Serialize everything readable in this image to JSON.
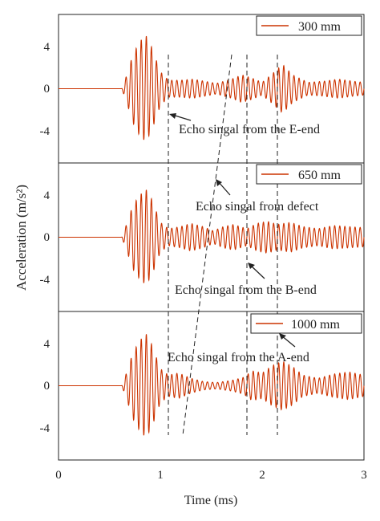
{
  "chart_data": {
    "type": "line",
    "xlabel": "Time (ms)",
    "ylabel": "Acceleration (m/s²)",
    "xlim": [
      0,
      3
    ],
    "xticks": [
      "0",
      "1",
      "2",
      "3"
    ],
    "ylim": [
      -7,
      7
    ],
    "yticks": [
      "-4",
      "0",
      "4"
    ],
    "line_color": "#cc3300",
    "legend_position": "top-right",
    "panels": [
      {
        "name": "300 mm",
        "envelope": [
          [
            0,
            0
          ],
          [
            0.62,
            0
          ],
          [
            0.66,
            1.0
          ],
          [
            0.73,
            3.2
          ],
          [
            0.8,
            4.5
          ],
          [
            0.86,
            5.0
          ],
          [
            0.92,
            3.8
          ],
          [
            1.0,
            1.6
          ],
          [
            1.08,
            0.8
          ],
          [
            1.2,
            0.8
          ],
          [
            1.32,
            0.9
          ],
          [
            1.44,
            0.7
          ],
          [
            1.55,
            0.5
          ],
          [
            1.7,
            0.9
          ],
          [
            1.8,
            1.3
          ],
          [
            1.9,
            1.0
          ],
          [
            2.0,
            0.6
          ],
          [
            2.1,
            1.4
          ],
          [
            2.2,
            2.3
          ],
          [
            2.3,
            1.3
          ],
          [
            2.45,
            0.6
          ],
          [
            2.6,
            0.7
          ],
          [
            2.75,
            0.9
          ],
          [
            2.9,
            0.7
          ],
          [
            3.0,
            0.6
          ]
        ]
      },
      {
        "name": "650 mm",
        "envelope": [
          [
            0,
            0
          ],
          [
            0.62,
            0
          ],
          [
            0.66,
            1.0
          ],
          [
            0.73,
            3.0
          ],
          [
            0.8,
            4.0
          ],
          [
            0.86,
            4.5
          ],
          [
            0.92,
            3.5
          ],
          [
            1.0,
            1.4
          ],
          [
            1.08,
            0.8
          ],
          [
            1.2,
            1.0
          ],
          [
            1.3,
            1.3
          ],
          [
            1.42,
            1.0
          ],
          [
            1.52,
            0.6
          ],
          [
            1.62,
            1.0
          ],
          [
            1.72,
            1.2
          ],
          [
            1.85,
            0.8
          ],
          [
            1.95,
            1.3
          ],
          [
            2.05,
            1.5
          ],
          [
            2.15,
            1.2
          ],
          [
            2.28,
            1.4
          ],
          [
            2.4,
            1.0
          ],
          [
            2.55,
            0.8
          ],
          [
            2.7,
            1.1
          ],
          [
            2.85,
            1.0
          ],
          [
            3.0,
            0.9
          ]
        ]
      },
      {
        "name": "1000 mm",
        "envelope": [
          [
            0,
            0
          ],
          [
            0.62,
            0
          ],
          [
            0.66,
            1.0
          ],
          [
            0.73,
            3.1
          ],
          [
            0.8,
            4.3
          ],
          [
            0.86,
            4.9
          ],
          [
            0.92,
            3.8
          ],
          [
            1.0,
            1.6
          ],
          [
            1.08,
            1.0
          ],
          [
            1.18,
            1.2
          ],
          [
            1.3,
            0.7
          ],
          [
            1.42,
            0.4
          ],
          [
            1.55,
            0.3
          ],
          [
            1.7,
            0.5
          ],
          [
            1.82,
            0.8
          ],
          [
            1.9,
            1.4
          ],
          [
            2.0,
            1.2
          ],
          [
            2.1,
            1.9
          ],
          [
            2.2,
            2.3
          ],
          [
            2.3,
            1.8
          ],
          [
            2.4,
            1.0
          ],
          [
            2.55,
            0.7
          ],
          [
            2.7,
            1.1
          ],
          [
            2.85,
            1.3
          ],
          [
            3.0,
            1.0
          ]
        ]
      }
    ],
    "annotations": [
      "Echo singal from the E-end",
      "Echo singal from defect",
      "Echo singal from the B-end",
      "Echo singal from the A-end"
    ]
  }
}
